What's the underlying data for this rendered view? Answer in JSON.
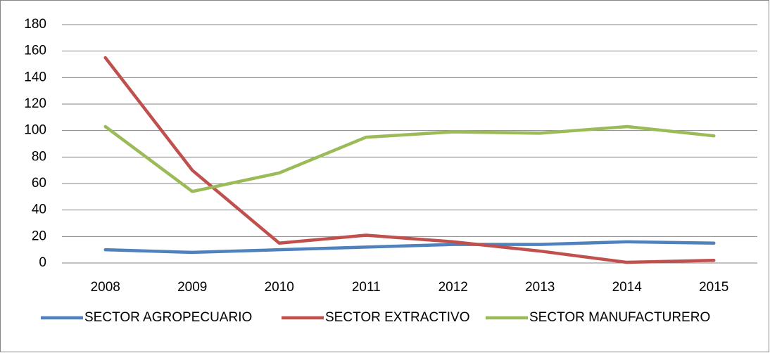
{
  "chart_data": {
    "type": "line",
    "categories": [
      "2008",
      "2009",
      "2010",
      "2011",
      "2012",
      "2013",
      "2014",
      "2015"
    ],
    "series": [
      {
        "name": "SECTOR AGROPECUARIO",
        "color": "#4f81bd",
        "values": [
          10,
          8,
          10,
          12,
          14,
          14,
          16,
          15
        ]
      },
      {
        "name": "SECTOR EXTRACTIVO",
        "color": "#c0504d",
        "values": [
          155,
          70,
          15,
          21,
          16,
          9,
          0.5,
          2
        ]
      },
      {
        "name": "SECTOR MANUFACTURERO",
        "color": "#9bbb59",
        "values": [
          103,
          54,
          68,
          95,
          99,
          98,
          103,
          96
        ]
      }
    ],
    "ylim": [
      0,
      180
    ],
    "yticks": [
      0,
      20,
      40,
      60,
      80,
      100,
      120,
      140,
      160,
      180
    ],
    "grid": true,
    "legend": "bottom"
  }
}
